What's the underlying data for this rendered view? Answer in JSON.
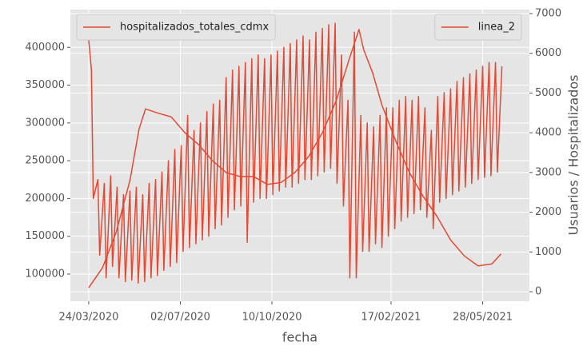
{
  "chart_data": {
    "type": "line",
    "xlabel": "fecha",
    "y2label": "Usuarios / Hospitalizados",
    "xlim": [
      "2020-03-04",
      "2021-07-18"
    ],
    "xticks": [
      {
        "value": "2020-03-24",
        "label": "24/03/2020"
      },
      {
        "value": "2020-07-02",
        "label": "02/07/2020"
      },
      {
        "value": "2020-10-10",
        "label": "10/10/2020"
      },
      {
        "value": "2021-02-17",
        "label": "17/02/2021"
      },
      {
        "value": "2021-05-28",
        "label": "28/05/2021"
      }
    ],
    "ylim": [
      64000,
      450000
    ],
    "yticks": [
      100000,
      150000,
      200000,
      250000,
      300000,
      350000,
      400000
    ],
    "y2lim": [
      -240,
      7100
    ],
    "y2ticks": [
      0,
      1000,
      2000,
      3000,
      4000,
      5000,
      6000,
      7000
    ],
    "grid": true,
    "series": [
      {
        "name": "hospitalizados_totales_cdmx",
        "color": "#E24A33",
        "axis": "y2",
        "legend": "upper left",
        "x": [
          "2020-03-24",
          "2020-04-08",
          "2020-04-23",
          "2020-05-08",
          "2020-05-18",
          "2020-05-25",
          "2020-06-07",
          "2020-06-22",
          "2020-07-07",
          "2020-07-22",
          "2020-08-06",
          "2020-08-21",
          "2020-09-05",
          "2020-09-20",
          "2020-10-05",
          "2020-10-20",
          "2020-11-04",
          "2020-11-19",
          "2020-12-04",
          "2020-12-19",
          "2021-01-03",
          "2021-01-13",
          "2021-01-18",
          "2021-01-28",
          "2021-02-07",
          "2021-02-22",
          "2021-03-09",
          "2021-03-24",
          "2021-04-08",
          "2021-04-23",
          "2021-05-08",
          "2021-05-23",
          "2021-06-07",
          "2021-06-17"
        ],
        "values": [
          100,
          600,
          1500,
          2800,
          4100,
          4600,
          4500,
          4400,
          4000,
          3700,
          3300,
          3000,
          2900,
          2900,
          2700,
          2750,
          3000,
          3400,
          4000,
          4800,
          5900,
          6600,
          6100,
          5500,
          4700,
          3800,
          3000,
          2400,
          1900,
          1300,
          900,
          650,
          700,
          950
        ]
      },
      {
        "name": "linea_2",
        "color": "#E24A33",
        "legend": "upper right",
        "x": [
          "2020-03-24",
          "2020-03-27",
          "2020-03-29",
          "2020-04-03",
          "2020-04-05",
          "2020-04-10",
          "2020-04-12",
          "2020-04-17",
          "2020-04-19",
          "2020-04-24",
          "2020-04-26",
          "2020-05-01",
          "2020-05-03",
          "2020-05-08",
          "2020-05-10",
          "2020-05-15",
          "2020-05-17",
          "2020-05-22",
          "2020-05-24",
          "2020-05-29",
          "2020-05-31",
          "2020-06-05",
          "2020-06-07",
          "2020-06-12",
          "2020-06-14",
          "2020-06-19",
          "2020-06-21",
          "2020-06-26",
          "2020-06-28",
          "2020-07-03",
          "2020-07-05",
          "2020-07-10",
          "2020-07-12",
          "2020-07-17",
          "2020-07-19",
          "2020-07-24",
          "2020-07-26",
          "2020-07-31",
          "2020-08-02",
          "2020-08-07",
          "2020-08-09",
          "2020-08-14",
          "2020-08-16",
          "2020-08-21",
          "2020-08-23",
          "2020-08-28",
          "2020-08-30",
          "2020-09-04",
          "2020-09-06",
          "2020-09-11",
          "2020-09-13",
          "2020-09-18",
          "2020-09-20",
          "2020-09-25",
          "2020-09-27",
          "2020-10-02",
          "2020-10-04",
          "2020-10-09",
          "2020-10-11",
          "2020-10-16",
          "2020-10-18",
          "2020-10-23",
          "2020-10-25",
          "2020-10-30",
          "2020-11-01",
          "2020-11-06",
          "2020-11-08",
          "2020-11-13",
          "2020-11-15",
          "2020-11-20",
          "2020-11-22",
          "2020-11-27",
          "2020-11-29",
          "2020-12-04",
          "2020-12-06",
          "2020-12-11",
          "2020-12-13",
          "2020-12-18",
          "2020-12-20",
          "2020-12-25",
          "2020-12-27",
          "2021-01-01",
          "2021-01-03",
          "2021-01-08",
          "2021-01-10",
          "2021-01-15",
          "2021-01-17",
          "2021-01-22",
          "2021-01-24",
          "2021-01-29",
          "2021-01-31",
          "2021-02-05",
          "2021-02-07",
          "2021-02-12",
          "2021-02-14",
          "2021-02-19",
          "2021-02-21",
          "2021-02-26",
          "2021-02-28",
          "2021-03-05",
          "2021-03-07",
          "2021-03-12",
          "2021-03-14",
          "2021-03-19",
          "2021-03-21",
          "2021-03-26",
          "2021-03-28",
          "2021-04-02",
          "2021-04-04",
          "2021-04-09",
          "2021-04-11",
          "2021-04-16",
          "2021-04-18",
          "2021-04-23",
          "2021-04-25",
          "2021-04-30",
          "2021-05-02",
          "2021-05-07",
          "2021-05-09",
          "2021-05-14",
          "2021-05-16",
          "2021-05-21",
          "2021-05-23",
          "2021-05-28",
          "2021-05-30",
          "2021-06-04",
          "2021-06-06",
          "2021-06-11",
          "2021-06-13",
          "2021-06-18"
        ],
        "values": [
          410000,
          370000,
          200000,
          225000,
          125000,
          220000,
          95000,
          230000,
          110000,
          215000,
          95000,
          205000,
          90000,
          210000,
          92000,
          215000,
          88000,
          205000,
          90000,
          220000,
          95000,
          225000,
          98000,
          235000,
          105000,
          250000,
          110000,
          265000,
          115000,
          270000,
          130000,
          310000,
          135000,
          290000,
          140000,
          300000,
          145000,
          315000,
          150000,
          325000,
          160000,
          330000,
          165000,
          360000,
          175000,
          370000,
          185000,
          375000,
          190000,
          380000,
          142000,
          385000,
          195000,
          390000,
          200000,
          385000,
          200000,
          390000,
          205000,
          395000,
          210000,
          400000,
          215000,
          405000,
          215000,
          410000,
          220000,
          415000,
          225000,
          410000,
          225000,
          420000,
          230000,
          425000,
          235000,
          430000,
          240000,
          432000,
          220000,
          390000,
          190000,
          330000,
          95000,
          420000,
          95000,
          310000,
          130000,
          300000,
          130000,
          295000,
          140000,
          310000,
          135000,
          320000,
          150000,
          320000,
          160000,
          330000,
          170000,
          335000,
          175000,
          330000,
          180000,
          335000,
          185000,
          320000,
          175000,
          290000,
          160000,
          335000,
          195000,
          340000,
          200000,
          345000,
          205000,
          355000,
          210000,
          360000,
          215000,
          365000,
          220000,
          370000,
          225000,
          375000,
          228000,
          380000,
          230000,
          380000,
          235000,
          375000
        ]
      }
    ]
  }
}
